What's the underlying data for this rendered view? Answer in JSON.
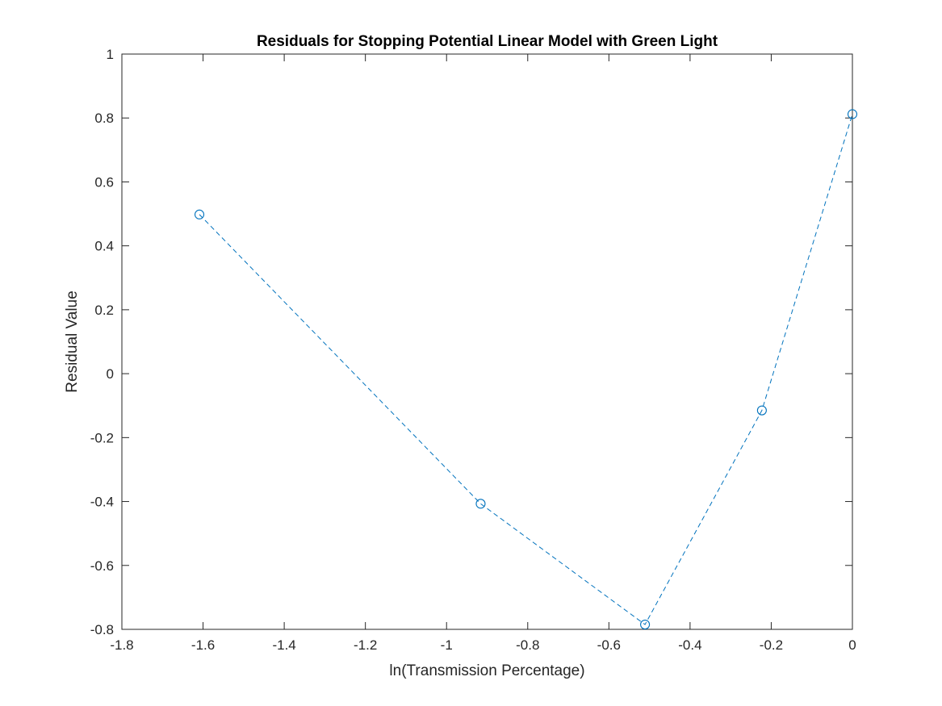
{
  "chart_data": {
    "type": "line",
    "title": "Residuals for Stopping Potential Linear Model with Green Light",
    "xlabel": "ln(Transmission Percentage)",
    "ylabel": "Residual Value",
    "xlim": [
      -1.8,
      0
    ],
    "ylim": [
      -0.8,
      1
    ],
    "xticks": [
      -1.8,
      -1.6,
      -1.4,
      -1.2,
      -1,
      -0.8,
      -0.6,
      -0.4,
      -0.2,
      0
    ],
    "yticks": [
      -0.8,
      -0.6,
      -0.4,
      -0.2,
      0,
      0.2,
      0.4,
      0.6,
      0.8,
      1
    ],
    "xtick_labels": [
      "-1.8",
      "-1.6",
      "-1.4",
      "-1.2",
      "-1",
      "-0.8",
      "-0.6",
      "-0.4",
      "-0.2",
      "0"
    ],
    "ytick_labels": [
      "-0.8",
      "-0.6",
      "-0.4",
      "-0.2",
      "0",
      "0.2",
      "0.4",
      "0.6",
      "0.8",
      "1"
    ],
    "grid": false,
    "series": [
      {
        "x": [
          -1.609,
          -0.916,
          -0.511,
          -0.223,
          0
        ],
        "y": [
          0.498,
          -0.407,
          -0.785,
          -0.115,
          0.812
        ],
        "color": "#0072BD",
        "line_style": "dashed",
        "marker": "circle"
      }
    ]
  }
}
